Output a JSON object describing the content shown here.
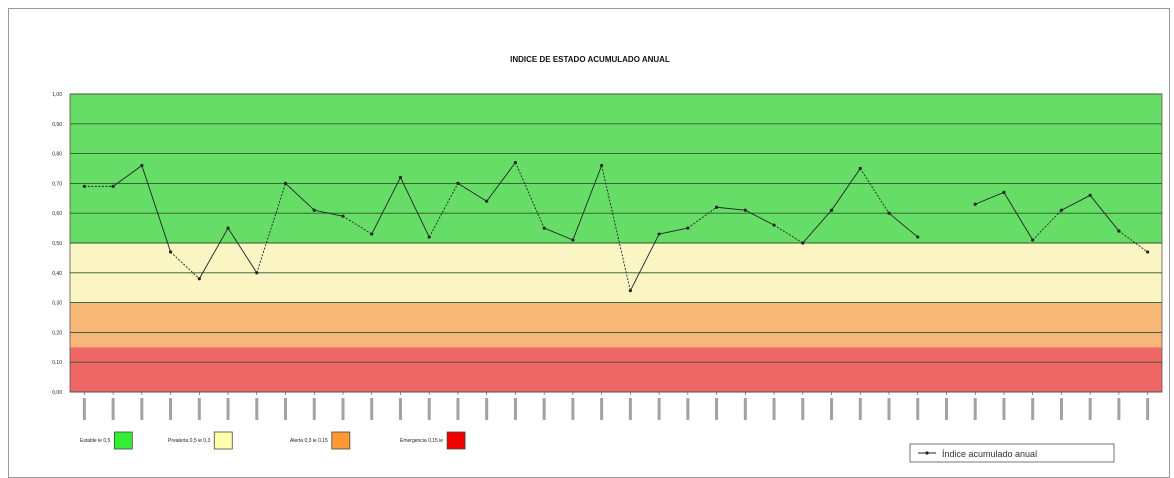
{
  "chart_data": {
    "type": "line",
    "title": "INDICE DE ESTADO ACUMULADO ANUAL",
    "ylim": [
      0,
      1
    ],
    "yticks": [
      "0,00",
      "0,10",
      "0,20",
      "0,30",
      "0,40",
      "0,50",
      "0,60",
      "0,70",
      "0,80",
      "0,90",
      "1,00"
    ],
    "grid": true,
    "bands": [
      {
        "label": "Estable ie 0,5",
        "from": 0.5,
        "to": 1.0,
        "color": "#66dd66"
      },
      {
        "label": "Prealerta 0,5 ie 0,3",
        "from": 0.3,
        "to": 0.5,
        "color": "#fbf5c4"
      },
      {
        "label": "Alerta 0,3 ie 0,15",
        "from": 0.15,
        "to": 0.3,
        "color": "#f7b777"
      },
      {
        "label": "Emergencia 0,15 ie",
        "from": 0.0,
        "to": 0.15,
        "color": "#ee6666"
      }
    ],
    "legend_swatch_colors": [
      "#33ee33",
      "#ffffaa",
      "#ff9933",
      "#ee0000"
    ],
    "series": [
      {
        "name": "Índice acumulado anual",
        "color": "#222222",
        "values": [
          0.69,
          0.69,
          0.76,
          0.47,
          0.38,
          0.55,
          0.4,
          0.7,
          0.61,
          0.59,
          0.53,
          0.72,
          0.52,
          0.7,
          0.64,
          0.77,
          0.55,
          0.51,
          0.76,
          0.34,
          0.53,
          0.55,
          0.62,
          0.61,
          0.56,
          0.5,
          0.61,
          0.75,
          0.6,
          0.52,
          null,
          0.63,
          0.67,
          0.51,
          0.61,
          0.66,
          0.54,
          0.47
        ]
      }
    ],
    "x_tick_count": 38,
    "legend_position": "bottom"
  }
}
